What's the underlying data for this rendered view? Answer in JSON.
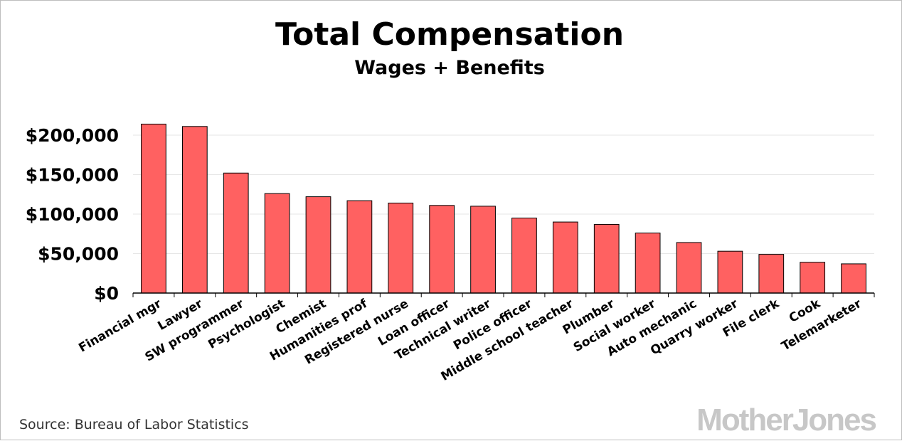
{
  "chart_data": {
    "type": "bar",
    "title": "Total Compensation",
    "subtitle": "Wages + Benefits",
    "categories": [
      "Financial mgr",
      "Lawyer",
      "SW programmer",
      "Psychologist",
      "Chemist",
      "Humanities prof",
      "Registered nurse",
      "Loan officer",
      "Technical writer",
      "Police officer",
      "Middle school teacher",
      "Plumber",
      "Social worker",
      "Auto mechanic",
      "Quarry worker",
      "File clerk",
      "Cook",
      "Telemarketer"
    ],
    "values": [
      214000,
      211000,
      152000,
      126000,
      122000,
      117000,
      114000,
      111000,
      110000,
      95000,
      90000,
      87000,
      76000,
      64000,
      53000,
      49000,
      39000,
      37000
    ],
    "ylim": [
      0,
      200000
    ],
    "yticks": [
      0,
      50000,
      100000,
      150000,
      200000
    ],
    "ytick_labels": [
      "$0",
      "$50,000",
      "$100,000",
      "$150,000",
      "$200,000"
    ],
    "bar_color": "#ff6161",
    "bar_stroke": "#000000",
    "grid": true,
    "grid_color": "#e6e6e6"
  },
  "source": "Source: Bureau of Labor Statistics",
  "logo": "MotherJones"
}
